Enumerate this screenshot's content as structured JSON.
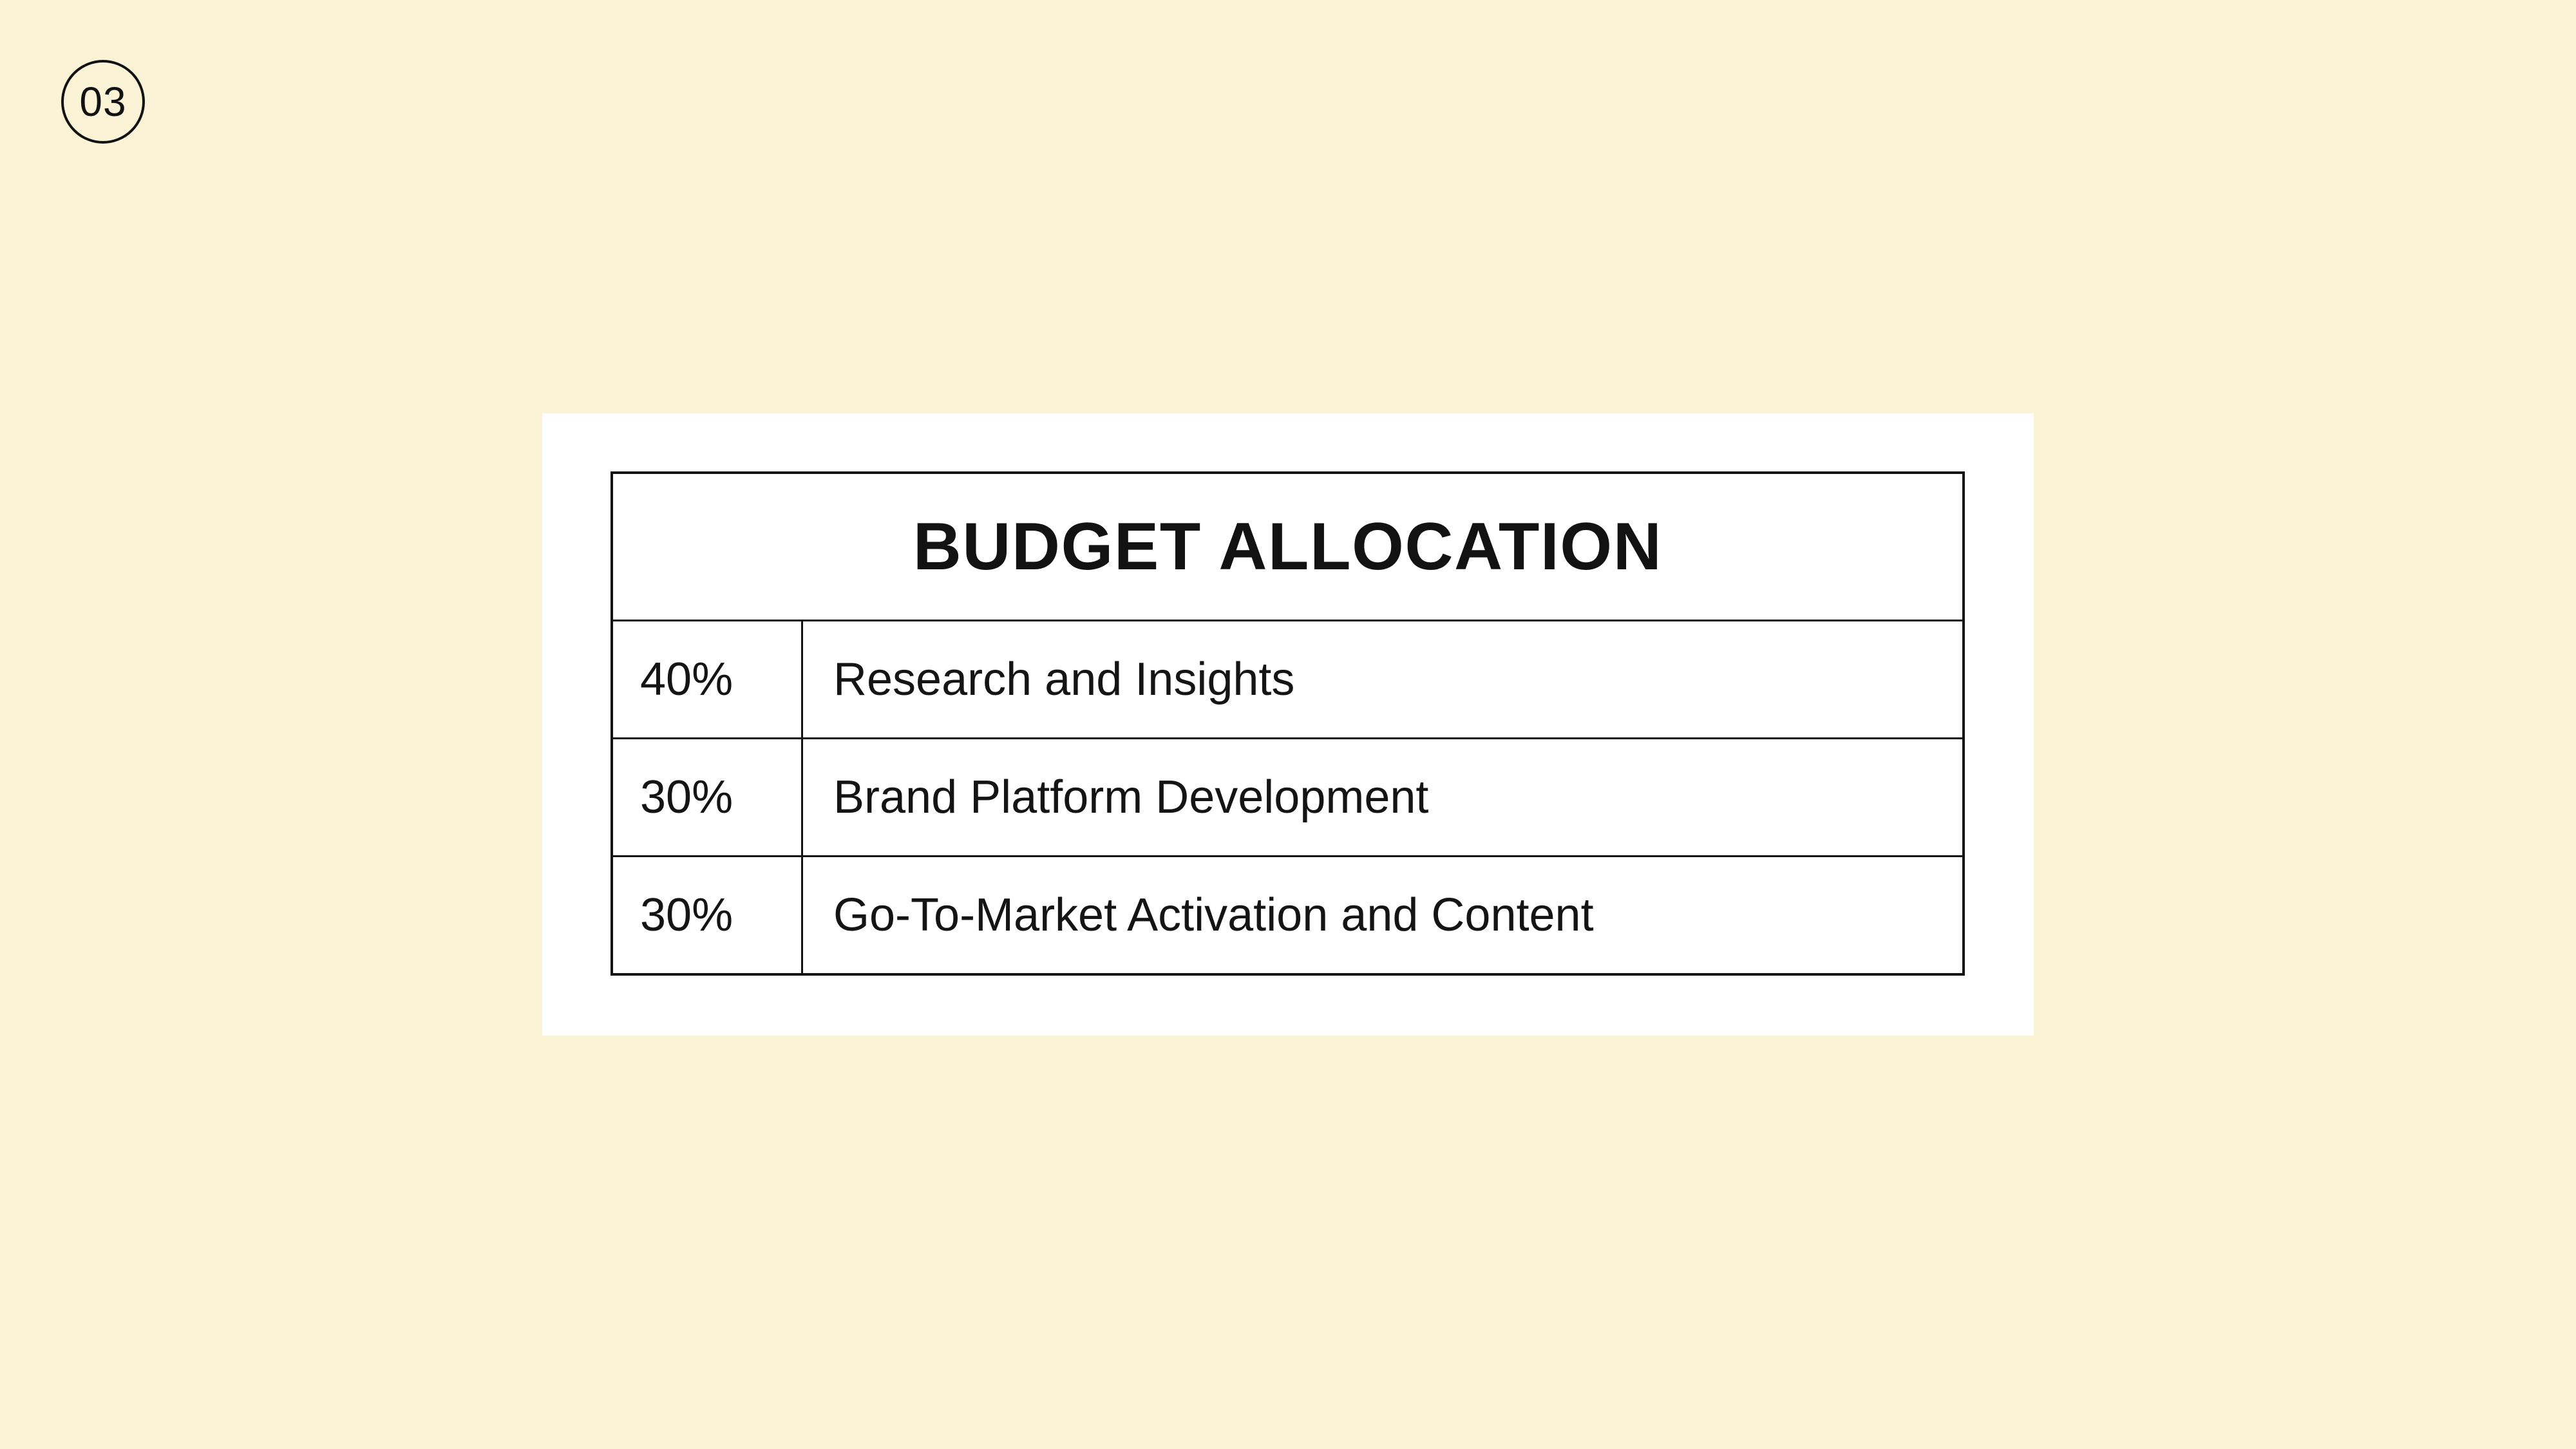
{
  "badge": {
    "label": "03"
  },
  "colors": {
    "background": "#FBF3D6",
    "card": "#FFFFFF",
    "ink": "#121212"
  },
  "chart_data": {
    "type": "table",
    "title": "BUDGET ALLOCATION",
    "columns": [
      "percent",
      "item"
    ],
    "rows": [
      {
        "percent": "40%",
        "label": "Research and Insights"
      },
      {
        "percent": "30%",
        "label": "Brand Platform Development"
      },
      {
        "percent": "30%",
        "label": "Go-To-Market Activation and Content"
      }
    ]
  }
}
